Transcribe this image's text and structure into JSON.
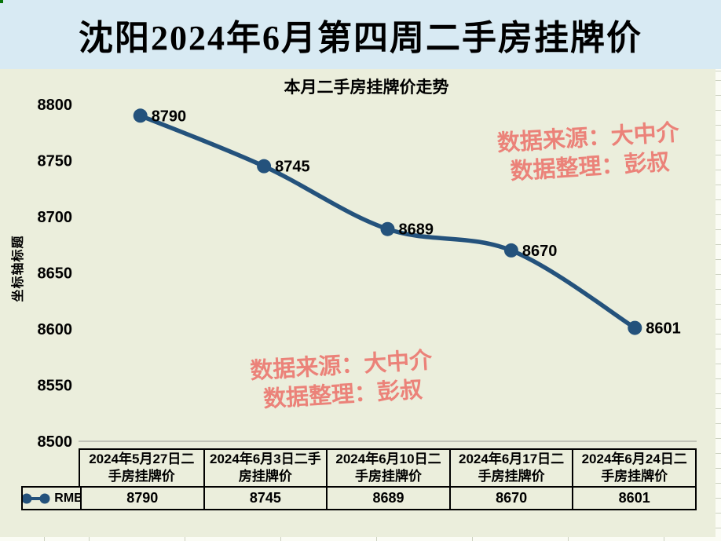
{
  "page": {
    "title": "沈阳2024年6月第四周二手房挂牌价",
    "title_band_color": "#d8eaf3",
    "canvas_color": "#ebeedc"
  },
  "chart_data": {
    "type": "line",
    "title": "本月二手房挂牌价走势",
    "categories": [
      "2024年5月27日二手房挂牌价",
      "2024年6月3日二手房挂牌价",
      "2024年6月10日二手房挂牌价",
      "2024年6月17日二手房挂牌价",
      "2024年6月24日二手房挂牌价"
    ],
    "series": [
      {
        "name": "RMB",
        "values": [
          8790,
          8745,
          8689,
          8670,
          8601
        ],
        "color": "#24527c"
      }
    ],
    "xlabel": "",
    "ylabel": "坐标轴标题",
    "ylim": [
      8500,
      8800
    ],
    "yticks": [
      8800,
      8750,
      8700,
      8650,
      8600,
      8550,
      8500
    ],
    "grid": false,
    "line_style": "smooth",
    "markers": true,
    "data_labels": [
      8790,
      8745,
      8689,
      8670,
      8601
    ],
    "legend_position": "table-left"
  },
  "watermark": {
    "line1": "数据来源：大中介",
    "line2": "数据整理：彭叔",
    "color": "#eb8279"
  }
}
